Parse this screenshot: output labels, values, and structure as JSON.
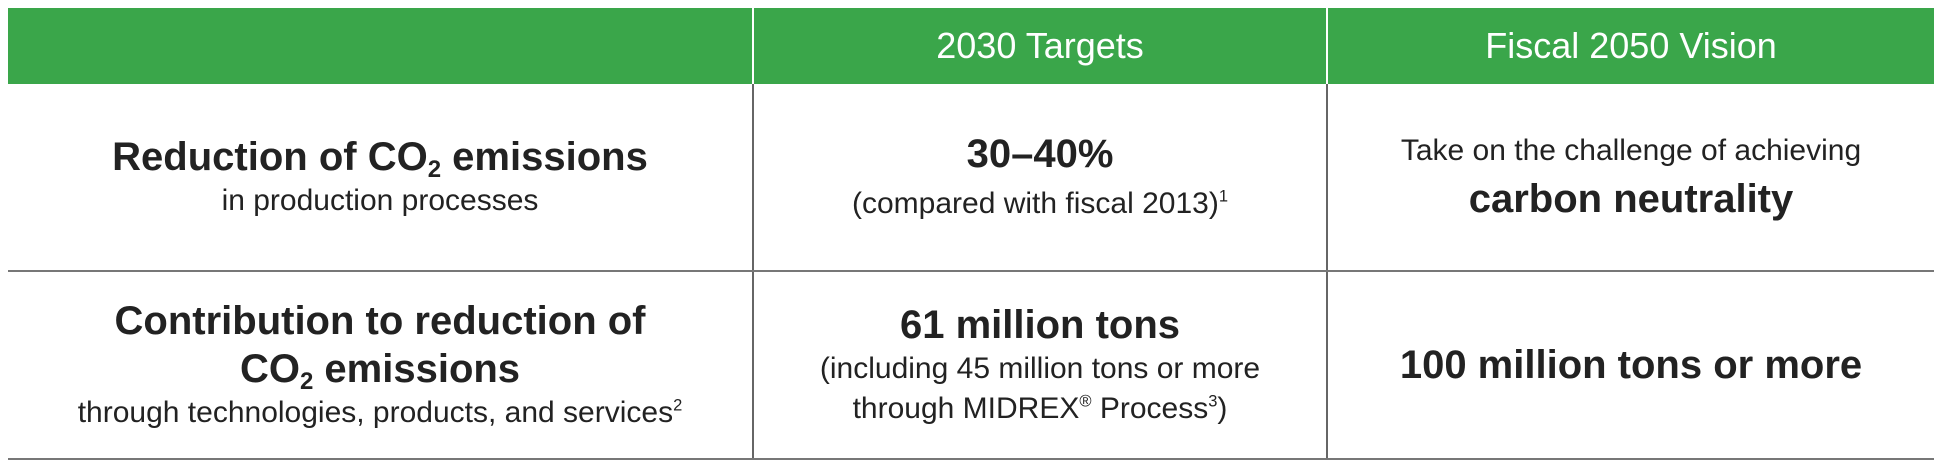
{
  "header": {
    "col1": "",
    "col2": "2030 Targets",
    "col3": "Fiscal 2050 Vision"
  },
  "rows": [
    {
      "label_title_a": "Reduction of CO",
      "label_title_sub": "2",
      "label_title_b": " emissions",
      "label_subtitle": "in production processes",
      "target_main": "30–40%",
      "target_note": "(compared with fiscal 2013)",
      "target_note_footnote": "1",
      "vision_line1": "Take on the challenge of achieving",
      "vision_line2": "carbon neutrality"
    },
    {
      "label_title_line1": "Contribution to reduction of",
      "label_title_a": "CO",
      "label_title_sub": "2",
      "label_title_b": " emissions",
      "label_subtitle": "through technologies, products, and services",
      "label_subtitle_footnote": "2",
      "target_main": "61 million tons",
      "target_note_line1": "(including 45 million tons or more",
      "target_note_line2_a": "through MIDREX",
      "target_note_reg": "®",
      "target_note_line2_b": " Process",
      "target_note_footnote": "3",
      "target_note_line2_c": ")",
      "vision_main": "100 million tons or more"
    }
  ]
}
